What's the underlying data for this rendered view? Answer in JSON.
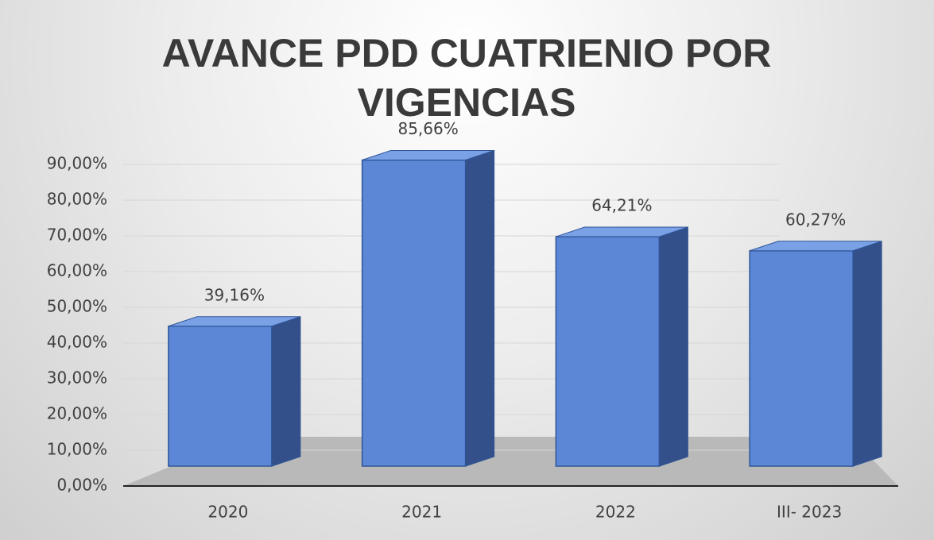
{
  "chart_data": {
    "type": "bar",
    "title": "AVANCE PDD CUATRIENIO POR VIGENCIAS",
    "categories": [
      "2020",
      "2021",
      "2022",
      "III- 2023"
    ],
    "values": [
      39.16,
      85.66,
      64.21,
      60.27
    ],
    "value_labels": [
      "39,16%",
      "85,66%",
      "64,21%",
      "60,27%"
    ],
    "color": "#5b87d6",
    "ylim": [
      0,
      90
    ],
    "yticks": [
      {
        "value": 0,
        "label": "0,00%"
      },
      {
        "value": 10,
        "label": "10,00%"
      },
      {
        "value": 20,
        "label": "20,00%"
      },
      {
        "value": 30,
        "label": "30,00%"
      },
      {
        "value": 40,
        "label": "40,00%"
      },
      {
        "value": 50,
        "label": "50,00%"
      },
      {
        "value": 60,
        "label": "60,00%"
      },
      {
        "value": 70,
        "label": "70,00%"
      },
      {
        "value": 80,
        "label": "80,00%"
      },
      {
        "value": 90,
        "label": "90,00%"
      }
    ],
    "grid": true
  }
}
